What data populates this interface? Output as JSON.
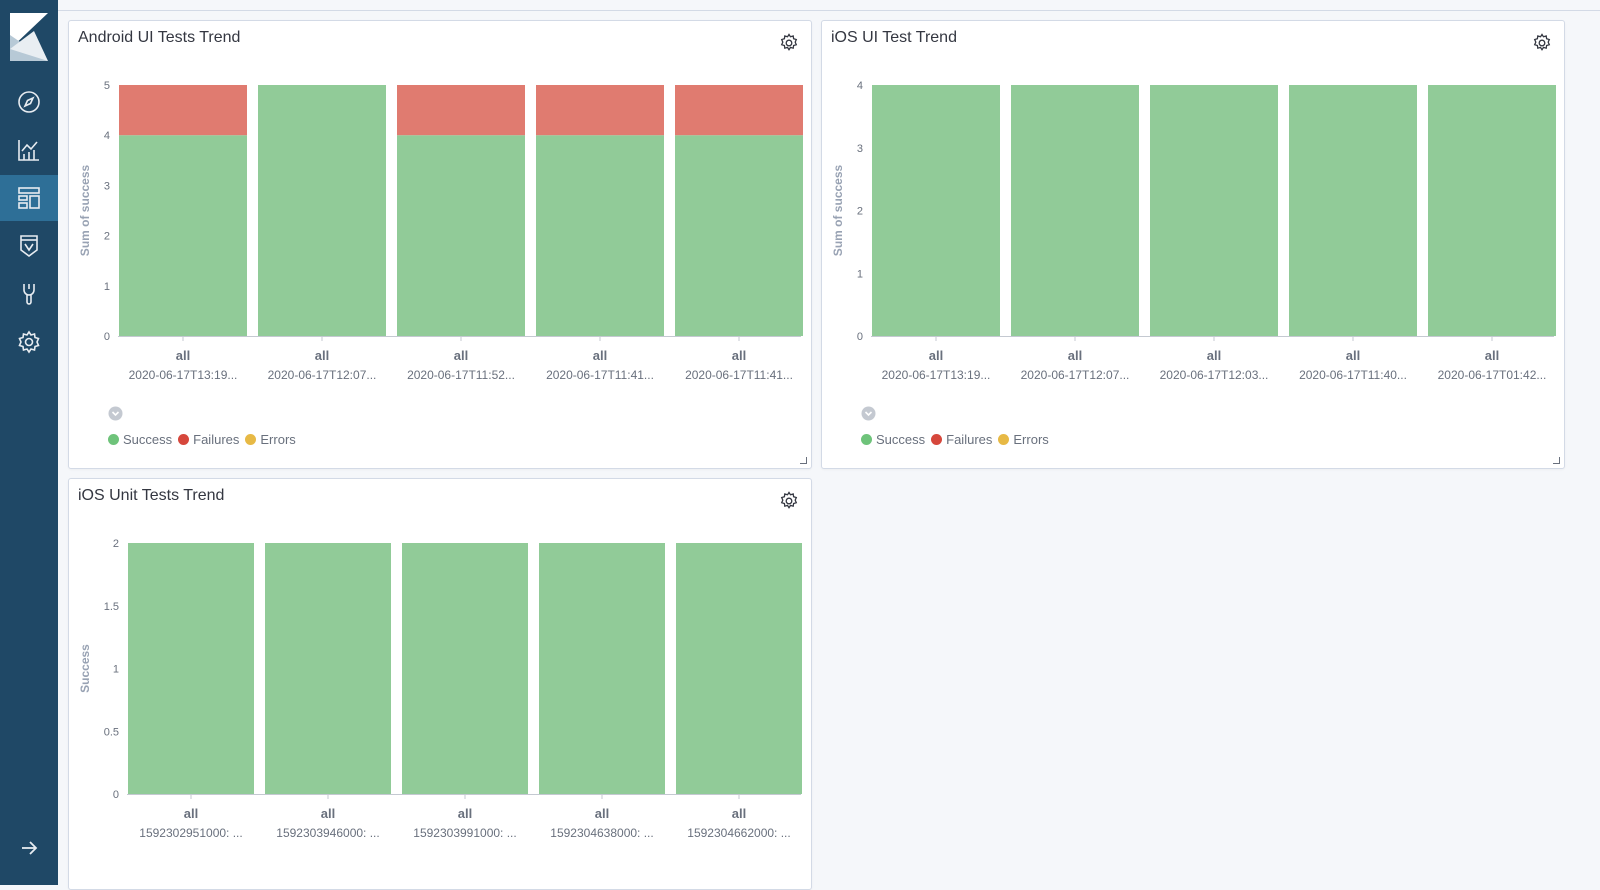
{
  "sidebar": {
    "items": [
      {
        "name": "discover",
        "icon": "compass-icon"
      },
      {
        "name": "visualize",
        "icon": "chart-icon"
      },
      {
        "name": "dashboard",
        "icon": "dashboard-icon",
        "active": true
      },
      {
        "name": "canvas",
        "icon": "canvas-icon"
      },
      {
        "name": "dev-tools",
        "icon": "wrench-icon"
      },
      {
        "name": "management",
        "icon": "gear-icon"
      }
    ],
    "collapse_icon": "arrow-right-icon"
  },
  "colors": {
    "success": "#91cb98",
    "failures": "#e07b70",
    "errors": "#e7c047",
    "sidebar": "#1f4866",
    "sidebar_active": "#2e6f97"
  },
  "panels": [
    {
      "title": "Android UI Tests Trend",
      "legend": [
        {
          "label": "Success",
          "color": "#6ec37a"
        },
        {
          "label": "Failures",
          "color": "#d6473c"
        },
        {
          "label": "Errors",
          "color": "#e7b945"
        }
      ],
      "chart_data": {
        "type": "bar",
        "stacked": true,
        "ylabel": "Sum of success",
        "yticks": [
          "0",
          "1",
          "2",
          "3",
          "4",
          "5"
        ],
        "ylim": [
          0,
          5
        ],
        "category_top": [
          "all",
          "all",
          "all",
          "all",
          "all"
        ],
        "categories": [
          "2020-06-17T13:19...",
          "2020-06-17T12:07...",
          "2020-06-17T11:52...",
          "2020-06-17T11:41...",
          "2020-06-17T11:41..."
        ],
        "series": [
          {
            "name": "Success",
            "color": "#91cb98",
            "values": [
              4,
              5,
              4,
              4,
              4
            ]
          },
          {
            "name": "Failures",
            "color": "#e07b70",
            "values": [
              1,
              0,
              1,
              1,
              1
            ]
          },
          {
            "name": "Errors",
            "color": "#e7c047",
            "values": [
              0,
              0,
              0,
              0,
              0
            ]
          }
        ]
      }
    },
    {
      "title": "iOS UI Test Trend",
      "legend": [
        {
          "label": "Success",
          "color": "#6ec37a"
        },
        {
          "label": "Failures",
          "color": "#d6473c"
        },
        {
          "label": "Errors",
          "color": "#e7b945"
        }
      ],
      "chart_data": {
        "type": "bar",
        "stacked": true,
        "ylabel": "Sum of success",
        "yticks": [
          "0",
          "1",
          "2",
          "3",
          "4"
        ],
        "ylim": [
          0,
          4
        ],
        "category_top": [
          "all",
          "all",
          "all",
          "all",
          "all"
        ],
        "categories": [
          "2020-06-17T13:19...",
          "2020-06-17T12:07...",
          "2020-06-17T12:03...",
          "2020-06-17T11:40...",
          "2020-06-17T01:42..."
        ],
        "series": [
          {
            "name": "Success",
            "color": "#91cb98",
            "values": [
              4,
              4,
              4,
              4,
              4
            ]
          },
          {
            "name": "Failures",
            "color": "#e07b70",
            "values": [
              0,
              0,
              0,
              0,
              0
            ]
          },
          {
            "name": "Errors",
            "color": "#e7c047",
            "values": [
              0,
              0,
              0,
              0,
              0
            ]
          }
        ]
      }
    },
    {
      "title": "iOS Unit Tests Trend",
      "chart_data": {
        "type": "bar",
        "stacked": false,
        "ylabel": "Success",
        "yticks": [
          "0",
          "0.5",
          "1",
          "1.5",
          "2"
        ],
        "ylim": [
          0,
          2
        ],
        "category_top": [
          "all",
          "all",
          "all",
          "all",
          "all"
        ],
        "categories": [
          "1592302951000: ...",
          "1592303946000: ...",
          "1592303991000: ...",
          "1592304638000: ...",
          "1592304662000: ..."
        ],
        "series": [
          {
            "name": "Success",
            "color": "#91cb98",
            "values": [
              2,
              2,
              2,
              2,
              2
            ]
          }
        ]
      }
    }
  ]
}
